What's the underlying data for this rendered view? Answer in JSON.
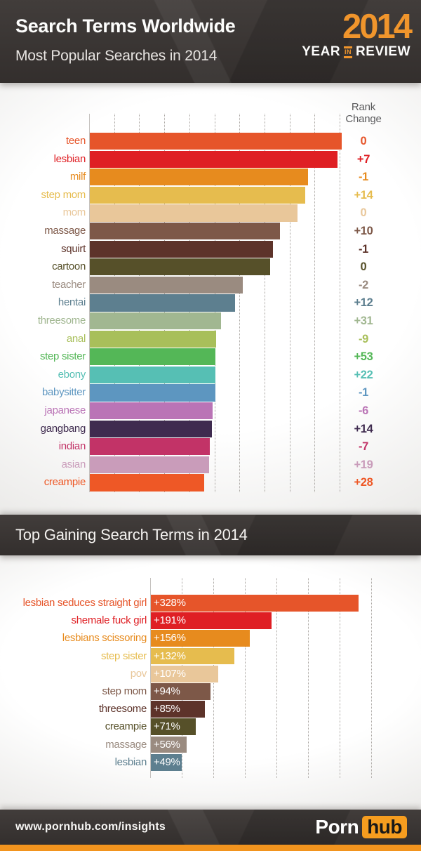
{
  "header": {
    "title": "Search Terms Worldwide",
    "subtitle": "Most Popular Searches in 2014",
    "logo": {
      "year": "2014",
      "word1": "YEAR",
      "word2": "IN",
      "word3": "REVIEW"
    }
  },
  "colors": {
    "band_background": "#3a3533",
    "accent_orange": "#f0952c",
    "bottom_strip": "#f2941e",
    "hub_box": "#f69d1f",
    "rank_header_text": "#5b5b5d",
    "gridline": "#a9a5a1",
    "axis": "#c5c2bf"
  },
  "chart_data": [
    {
      "type": "bar",
      "title": "Most Popular Searches in 2014",
      "orientation": "horizontal",
      "value_axis_note": "relative search volume, unlabeled dotted gridlines every 10 units (axis 0-100)",
      "xlim": [
        0,
        100
      ],
      "grid": true,
      "legend": false,
      "rank_header": "Rank Change",
      "rows": [
        {
          "label": "teen",
          "value": 100.5,
          "rank_change": "0",
          "color": "#e6552a"
        },
        {
          "label": "lesbian",
          "value": 99,
          "rank_change": "+7",
          "color": "#df1f24"
        },
        {
          "label": "milf",
          "value": 87,
          "rank_change": "-1",
          "color": "#e78b1e"
        },
        {
          "label": "step mom",
          "value": 86,
          "rank_change": "+14",
          "color": "#e6bc4e"
        },
        {
          "label": "mom",
          "value": 83,
          "rank_change": "0",
          "color": "#e9c79a"
        },
        {
          "label": "massage",
          "value": 76,
          "rank_change": "+10",
          "color": "#7d5848"
        },
        {
          "label": "squirt",
          "value": 73,
          "rank_change": "-1",
          "color": "#5d332a"
        },
        {
          "label": "cartoon",
          "value": 72,
          "rank_change": "0",
          "color": "#565029"
        },
        {
          "label": "teacher",
          "value": 61,
          "rank_change": "-2",
          "color": "#9a8b80"
        },
        {
          "label": "hentai",
          "value": 58,
          "rank_change": "+12",
          "color": "#5d7f8f"
        },
        {
          "label": "threesome",
          "value": 52.5,
          "rank_change": "+31",
          "color": "#a1b791"
        },
        {
          "label": "anal",
          "value": 50.5,
          "rank_change": "-9",
          "color": "#a8bf5a"
        },
        {
          "label": "step sister",
          "value": 50,
          "rank_change": "+53",
          "color": "#54b757"
        },
        {
          "label": "ebony",
          "value": 50,
          "rank_change": "+22",
          "color": "#56bfb4"
        },
        {
          "label": "babysitter",
          "value": 50,
          "rank_change": "-1",
          "color": "#5d96c0"
        },
        {
          "label": "japanese",
          "value": 49,
          "rank_change": "-6",
          "color": "#ba74b6"
        },
        {
          "label": "gangbang",
          "value": 48.7,
          "rank_change": "+14",
          "color": "#3f2b4f"
        },
        {
          "label": "indian",
          "value": 48,
          "rank_change": "-7",
          "color": "#c23367"
        },
        {
          "label": "asian",
          "value": 47.6,
          "rank_change": "+19",
          "color": "#c99cba"
        },
        {
          "label": "creampie",
          "value": 45.7,
          "rank_change": "+28",
          "color": "#ee5826"
        }
      ]
    },
    {
      "type": "bar",
      "title": "Top Gaining Search Terms in 2014",
      "orientation": "horizontal",
      "value_axis_note": "percent gain, unlabeled dotted gridlines every 50% (axis 0-350%)",
      "xlim": [
        0,
        350
      ],
      "unit": "%",
      "grid": true,
      "legend": false,
      "rows": [
        {
          "label": "lesbian seduces straight girl",
          "value": 328,
          "value_label": "+328%",
          "color": "#e6552a"
        },
        {
          "label": "shemale fuck girl",
          "value": 191,
          "value_label": "+191%",
          "color": "#df1f24"
        },
        {
          "label": "lesbians scissoring",
          "value": 156,
          "value_label": "+156%",
          "color": "#e78b1e"
        },
        {
          "label": "step sister",
          "value": 132,
          "value_label": "+132%",
          "color": "#e6bc4e"
        },
        {
          "label": "pov",
          "value": 107,
          "value_label": "+107%",
          "color": "#e9c79a"
        },
        {
          "label": "step mom",
          "value": 94,
          "value_label": "+94%",
          "color": "#7d5848"
        },
        {
          "label": "threesome",
          "value": 85,
          "value_label": "+85%",
          "color": "#5d332a"
        },
        {
          "label": "creampie",
          "value": 71,
          "value_label": "+71%",
          "color": "#565029"
        },
        {
          "label": "massage",
          "value": 56,
          "value_label": "+56%",
          "color": "#9a8b80"
        },
        {
          "label": "lesbian",
          "value": 49,
          "value_label": "+49%",
          "color": "#5d7f8f"
        }
      ]
    }
  ],
  "footer": {
    "url": "www.pornhub.com/insights",
    "brand": {
      "left": "Porn",
      "right": "hub"
    }
  }
}
